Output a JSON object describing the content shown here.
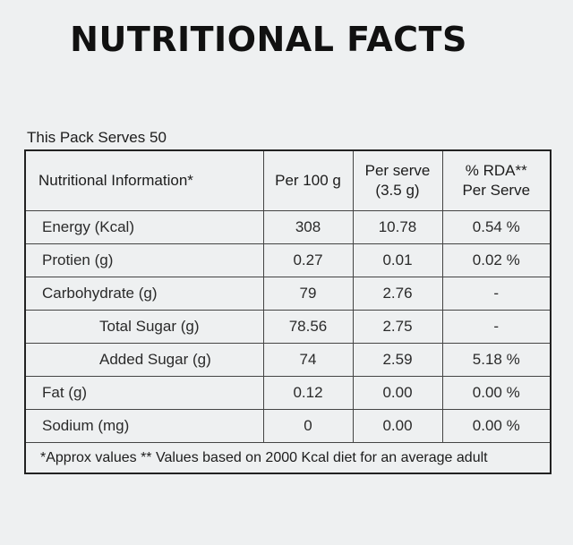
{
  "title": "NUTRITIONAL FACTS",
  "serves": "This Pack Serves 50",
  "headers": {
    "info": "Nutritional Information*",
    "per100": "Per 100 g",
    "perserve_line1": "Per serve",
    "perserve_line2": "(3.5 g)",
    "rda_line1": "% RDA**",
    "rda_line2": "Per Serve"
  },
  "rows": [
    {
      "label": "Energy (Kcal)",
      "per100": "308",
      "perserve": "10.78",
      "rda": "0.54 %"
    },
    {
      "label": "Protien (g)",
      "per100": "0.27",
      "perserve": "0.01",
      "rda": "0.02 %"
    },
    {
      "label": "Carbohydrate (g)",
      "per100": "79",
      "perserve": "2.76",
      "rda": "-"
    },
    {
      "label": "Total Sugar (g)",
      "per100": "78.56",
      "perserve": "2.75",
      "rda": "-"
    },
    {
      "label": "Added Sugar (g)",
      "per100": "74",
      "perserve": "2.59",
      "rda": "5.18 %"
    },
    {
      "label": "Fat (g)",
      "per100": "0.12",
      "perserve": "0.00",
      "rda": "0.00 %"
    },
    {
      "label": "Sodium (mg)",
      "per100": "0",
      "perserve": "0.00",
      "rda": "0.00 %"
    }
  ],
  "footnote": "*Approx values ** Values based on 2000 Kcal diet for an average adult"
}
